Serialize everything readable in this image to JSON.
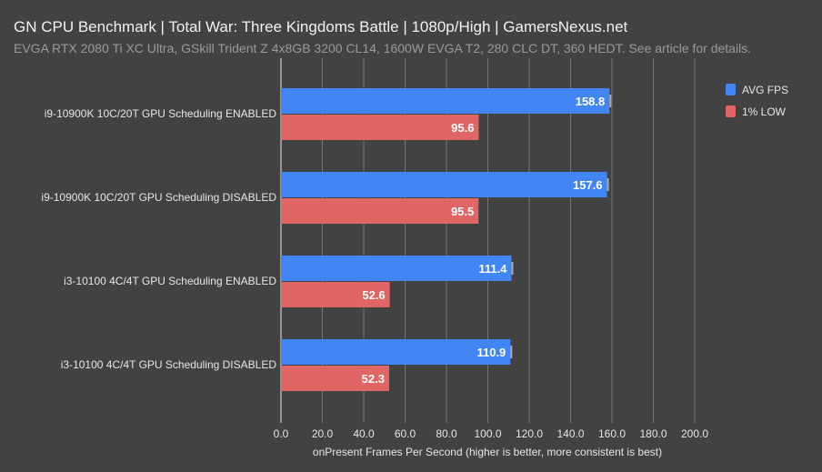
{
  "title": "GN CPU Benchmark | Total War: Three Kingdoms Battle | 1080p/High | GamersNexus.net",
  "subtitle": "EVGA RTX 2080 Ti XC Ultra, GSkill Trident Z 4x8GB 3200 CL14, 1600W EVGA T2, 280 CLC DT, 360 HEDT. See article for details.",
  "chart_data": {
    "type": "bar",
    "orientation": "horizontal",
    "categories": [
      "i9-10900K 10C/20T GPU Scheduling ENABLED",
      "i9-10900K 10C/20T GPU Scheduling DISABLED",
      "i3-10100 4C/4T GPU Scheduling ENABLED",
      "i3-10100 4C/4T GPU Scheduling DISABLED"
    ],
    "series": [
      {
        "name": "AVG FPS",
        "color": "#4285f4",
        "values": [
          158.8,
          157.6,
          111.4,
          110.9
        ]
      },
      {
        "name": "1% LOW",
        "color": "#e06666",
        "values": [
          95.6,
          95.5,
          52.6,
          52.3
        ]
      }
    ],
    "xlabel": "onPresent Frames Per Second (higher is better, more consistent is best)",
    "xlim": [
      0,
      200
    ],
    "xticks": [
      "0.0",
      "20.0",
      "40.0",
      "60.0",
      "80.0",
      "100.0",
      "120.0",
      "140.0",
      "160.0",
      "180.0",
      "200.0"
    ],
    "grid": true,
    "legend": "top-right"
  }
}
